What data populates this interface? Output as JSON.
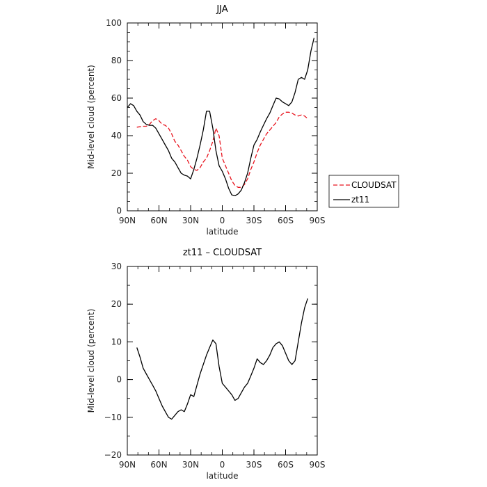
{
  "chart_data": [
    {
      "type": "line",
      "title": "JJA",
      "xlabel": "latitude",
      "ylabel": "Mid-level cloud (percent)",
      "xlim": [
        90,
        -90
      ],
      "ylim": [
        0,
        100
      ],
      "xticks": [
        90,
        60,
        30,
        0,
        -30,
        -60,
        -90
      ],
      "xtick_labels": [
        "90N",
        "60N",
        "30N",
        "0",
        "30S",
        "60S",
        "90S"
      ],
      "yticks": [
        0,
        20,
        40,
        60,
        80,
        100
      ],
      "ytick_labels": [
        "0",
        "20",
        "40",
        "60",
        "80",
        "100"
      ],
      "legend": "right",
      "series": [
        {
          "name": "CLOUDSAT",
          "color": "#e8141e",
          "dash": "dashed",
          "x": [
            81,
            75,
            72,
            69,
            66,
            63,
            60,
            57,
            54,
            51,
            48,
            45,
            42,
            39,
            36,
            33,
            30,
            27,
            24,
            21,
            18,
            15,
            12,
            9,
            6,
            3,
            0,
            -3,
            -6,
            -9,
            -12,
            -15,
            -18,
            -21,
            -24,
            -27,
            -30,
            -33,
            -36,
            -39,
            -42,
            -45,
            -48,
            -51,
            -54,
            -57,
            -60,
            -63,
            -66,
            -69,
            -72,
            -75,
            -78,
            -81
          ],
          "y": [
            44.5,
            45,
            45,
            46,
            48,
            49,
            48,
            46,
            45.5,
            44,
            41,
            37,
            35,
            32,
            29,
            27,
            23.5,
            22,
            21.5,
            23,
            26,
            28,
            32,
            37,
            44,
            40,
            28,
            24,
            20,
            16,
            13.5,
            12.5,
            12.5,
            14,
            17,
            22,
            26,
            31,
            35,
            38,
            41,
            43,
            45,
            47,
            50,
            51.5,
            52.5,
            52.5,
            52,
            51,
            50.5,
            51,
            50.5,
            49
          ]
        },
        {
          "name": "zt11",
          "color": "#000000",
          "dash": "solid",
          "x": [
            90,
            87,
            84,
            81,
            78,
            75,
            72,
            69,
            66,
            63,
            60,
            57,
            54,
            51,
            48,
            45,
            42,
            39,
            36,
            33,
            30,
            27,
            24,
            21,
            18,
            15,
            12,
            9,
            6,
            3,
            0,
            -3,
            -6,
            -9,
            -12,
            -15,
            -18,
            -21,
            -24,
            -27,
            -30,
            -33,
            -36,
            -39,
            -42,
            -45,
            -48,
            -51,
            -54,
            -57,
            -60,
            -63,
            -66,
            -69,
            -72,
            -75,
            -78,
            -81,
            -84,
            -87
          ],
          "y": [
            55,
            57,
            56,
            53,
            51,
            47.5,
            46,
            45.5,
            45.5,
            44,
            41,
            38,
            35,
            32,
            28,
            26,
            23,
            20,
            19,
            18.5,
            17,
            22,
            28,
            35,
            43,
            53,
            53,
            44,
            32,
            24,
            21,
            17,
            12,
            8.5,
            8,
            9,
            11,
            15,
            20,
            28,
            35,
            38,
            42,
            45.5,
            49,
            52,
            56,
            60,
            59.5,
            58,
            57,
            56,
            58,
            63,
            70,
            71,
            70,
            75,
            85,
            92
          ]
        }
      ]
    },
    {
      "type": "line",
      "title": "zt11 – CLOUDSAT",
      "xlabel": "latitude",
      "ylabel": "Mid-level cloud (percent)",
      "xlim": [
        90,
        -90
      ],
      "ylim": [
        -20,
        30
      ],
      "xticks": [
        90,
        60,
        30,
        0,
        -30,
        -60,
        -90
      ],
      "xtick_labels": [
        "90N",
        "60N",
        "30N",
        "0",
        "30S",
        "60S",
        "90S"
      ],
      "yticks": [
        -20,
        -10,
        0,
        10,
        20,
        30
      ],
      "ytick_labels": [
        "−20",
        "−10",
        "0",
        "10",
        "20",
        "30"
      ],
      "series": [
        {
          "color": "#000000",
          "dash": "solid",
          "x": [
            81,
            78,
            75,
            72,
            69,
            66,
            63,
            60,
            57,
            54,
            51,
            48,
            45,
            42,
            39,
            36,
            33,
            30,
            27,
            24,
            21,
            18,
            15,
            12,
            9,
            6,
            3,
            0,
            -3,
            -6,
            -9,
            -12,
            -15,
            -18,
            -21,
            -24,
            -27,
            -30,
            -33,
            -36,
            -39,
            -42,
            -45,
            -48,
            -51,
            -54,
            -57,
            -60,
            -63,
            -66,
            -69,
            -72,
            -75,
            -78,
            -81
          ],
          "y": [
            8.5,
            6,
            3,
            1.5,
            0,
            -1.5,
            -3,
            -5,
            -7,
            -8.5,
            -10,
            -10.5,
            -9.5,
            -8.5,
            -8,
            -8.5,
            -6.5,
            -4,
            -4.5,
            -1.5,
            1.5,
            4,
            6.5,
            8.5,
            10.5,
            9.5,
            3.5,
            -1,
            -2,
            -3,
            -4,
            -5.5,
            -5,
            -3.5,
            -2,
            -1,
            1,
            3,
            5.5,
            4.5,
            4,
            5,
            6.5,
            8.5,
            9.5,
            10,
            9,
            7,
            5,
            4,
            5,
            10,
            15,
            19,
            21.5
          ]
        }
      ]
    }
  ]
}
